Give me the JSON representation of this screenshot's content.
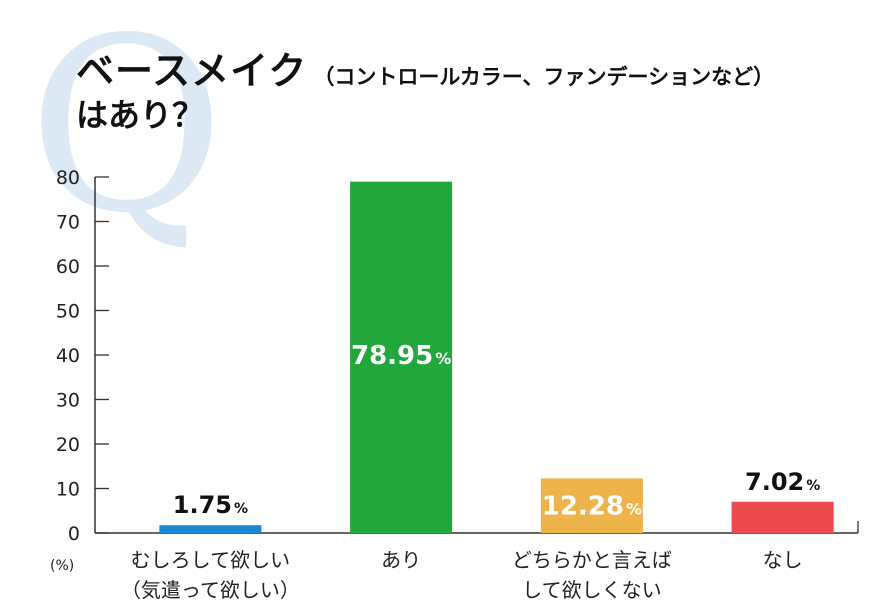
{
  "title": {
    "q_mark": "Q",
    "main": "ベースメイク",
    "sub": "（コントロールカラー、ファンデーションなど）",
    "line2": "はあり？"
  },
  "chart_data": {
    "type": "bar",
    "unit_label": "(%)",
    "ylim": [
      0,
      80
    ],
    "yticks": [
      0,
      10,
      20,
      30,
      40,
      50,
      60,
      70,
      80
    ],
    "categories": [
      [
        "むしろして欲しい",
        "（気遣って欲しい）"
      ],
      [
        "あり"
      ],
      [
        "どちらかと言えば",
        "して欲しくない"
      ],
      [
        "なし"
      ]
    ],
    "values": [
      1.75,
      78.95,
      12.28,
      7.02
    ],
    "value_labels": [
      "1.75",
      "78.95",
      "12.28",
      "7.02"
    ],
    "percent_sign": "%",
    "colors": [
      "#1a86d4",
      "#21a73b",
      "#eeb44b",
      "#ec4a4c"
    ],
    "label_inside": [
      false,
      true,
      true,
      false
    ]
  }
}
